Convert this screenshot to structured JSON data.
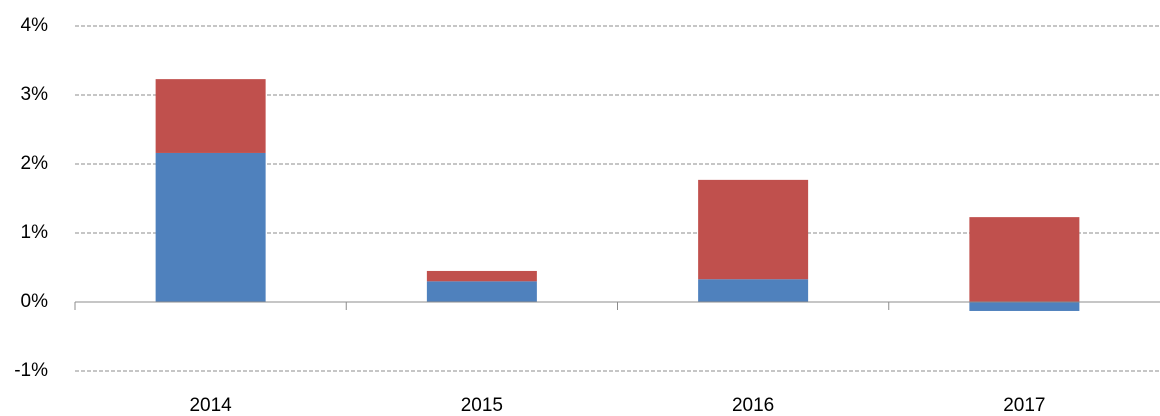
{
  "chart_data": {
    "type": "stacked_bar",
    "categories": [
      "2014",
      "2015",
      "2016",
      "2017"
    ],
    "series": [
      {
        "color": "#4f81bd",
        "values": [
          2.16,
          0.3,
          0.33,
          -0.13
        ]
      },
      {
        "color": "#c0504d",
        "values": [
          1.07,
          0.15,
          1.44,
          1.23
        ]
      }
    ],
    "ylim": [
      -1,
      4
    ],
    "yticks": [
      {
        "value": -1,
        "label": "-1%"
      },
      {
        "value": 0,
        "label": "0%"
      },
      {
        "value": 1,
        "label": "1%"
      },
      {
        "value": 2,
        "label": "2%"
      },
      {
        "value": 3,
        "label": "3%"
      },
      {
        "value": 4,
        "label": "4%"
      }
    ],
    "grid": true
  }
}
